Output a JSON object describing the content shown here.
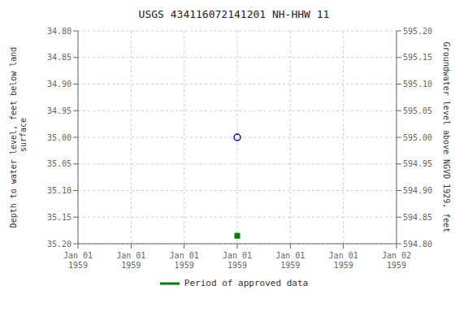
{
  "chart_data": {
    "type": "scatter",
    "title": "USGS 434116072141201 NH-HHW   11",
    "y_label": "Depth to water level, feet below land\n surface",
    "y2_label": "Groundwater level above NGVD 1929, feet",
    "categories": [
      "Jan 01\n1959",
      "Jan 01\n1959",
      "Jan 01\n1959",
      "Jan 01\n1959",
      "Jan 01\n1959",
      "Jan 01\n1959",
      "Jan 02\n1959"
    ],
    "series": [
      {
        "color": "#0000CC",
        "marker": "open_circle",
        "values": [
          null,
          null,
          null,
          35.0,
          null,
          null,
          null
        ]
      },
      {
        "name": "Period of approved data",
        "color": "#008000",
        "marker": "square",
        "values": [
          null,
          null,
          null,
          35.185,
          null,
          null,
          null
        ]
      }
    ],
    "ylim": [
      35.2,
      34.8
    ],
    "yticks": [
      {
        "value": 34.8,
        "label": "34.80"
      },
      {
        "value": 34.85,
        "label": "34.85"
      },
      {
        "value": 34.9,
        "label": "34.90"
      },
      {
        "value": 34.95,
        "label": "34.95"
      },
      {
        "value": 35.0,
        "label": "35.00"
      },
      {
        "value": 35.05,
        "label": "35.05"
      },
      {
        "value": 35.1,
        "label": "35.10"
      },
      {
        "value": 35.15,
        "label": "35.15"
      },
      {
        "value": 35.2,
        "label": "35.20"
      }
    ],
    "y2lim": [
      594.8,
      595.2
    ],
    "y2ticks": [
      {
        "value": 595.2,
        "label": "595.20"
      },
      {
        "value": 595.15,
        "label": "595.15"
      },
      {
        "value": 595.1,
        "label": "595.10"
      },
      {
        "value": 595.05,
        "label": "595.05"
      },
      {
        "value": 595.0,
        "label": "595.00"
      },
      {
        "value": 594.95,
        "label": "594.95"
      },
      {
        "value": 594.9,
        "label": "594.90"
      },
      {
        "value": 594.85,
        "label": "594.85"
      },
      {
        "value": 594.8,
        "label": "594.80"
      }
    ],
    "grid": true
  }
}
